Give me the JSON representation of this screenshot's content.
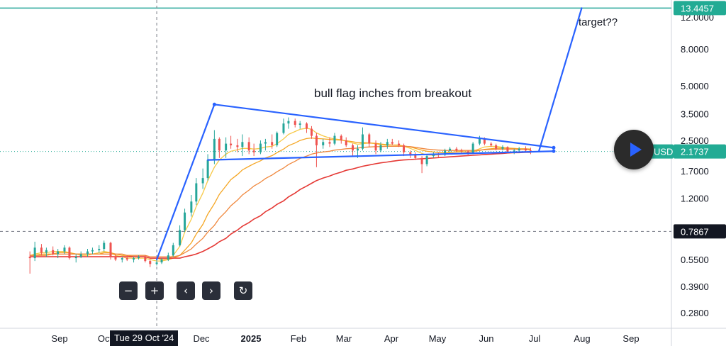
{
  "chart_data": {
    "type": "candlestick",
    "price_scale": "log",
    "y_ticks": [
      "12.0000",
      "8.0000",
      "5.0000",
      "3.5000",
      "2.5000",
      "1.7000",
      "1.2000",
      "0.5500",
      "0.3900",
      "0.2800"
    ],
    "x_ticks": [
      "Sep",
      "Oct",
      "Dec",
      "2025",
      "Feb",
      "Mar",
      "Apr",
      "May",
      "Jun",
      "Jul",
      "Aug",
      "Sep"
    ],
    "bold_tick": "2025",
    "crosshair_date": "Tue 29 Oct '24",
    "crosshair_price": "0.7867",
    "current_price": "2.1737",
    "symbol_suffix": "USD",
    "target_price": "13.4457",
    "annotations": [
      "bull flag inches from breakout",
      "target??"
    ],
    "ohlc": [
      [
        "2024-08-13",
        0.57,
        0.61,
        0.46,
        0.56
      ],
      [
        "2024-08-16",
        0.56,
        0.69,
        0.54,
        0.64
      ],
      [
        "2024-08-20",
        0.64,
        0.67,
        0.58,
        0.6
      ],
      [
        "2024-08-23",
        0.6,
        0.64,
        0.57,
        0.62
      ],
      [
        "2024-08-27",
        0.62,
        0.65,
        0.58,
        0.59
      ],
      [
        "2024-08-30",
        0.59,
        0.63,
        0.56,
        0.61
      ],
      [
        "2024-09-03",
        0.61,
        0.66,
        0.59,
        0.64
      ],
      [
        "2024-09-06",
        0.64,
        0.65,
        0.55,
        0.56
      ],
      [
        "2024-09-10",
        0.56,
        0.59,
        0.53,
        0.57
      ],
      [
        "2024-09-13",
        0.57,
        0.61,
        0.56,
        0.59
      ],
      [
        "2024-09-17",
        0.59,
        0.63,
        0.57,
        0.61
      ],
      [
        "2024-09-20",
        0.61,
        0.64,
        0.59,
        0.62
      ],
      [
        "2024-09-24",
        0.62,
        0.66,
        0.6,
        0.63
      ],
      [
        "2024-09-27",
        0.63,
        0.7,
        0.61,
        0.68
      ],
      [
        "2024-10-01",
        0.68,
        0.69,
        0.55,
        0.57
      ],
      [
        "2024-10-04",
        0.57,
        0.59,
        0.54,
        0.55
      ],
      [
        "2024-10-08",
        0.55,
        0.57,
        0.53,
        0.56
      ],
      [
        "2024-10-11",
        0.56,
        0.58,
        0.54,
        0.55
      ],
      [
        "2024-10-15",
        0.55,
        0.57,
        0.53,
        0.56
      ],
      [
        "2024-10-18",
        0.56,
        0.58,
        0.55,
        0.57
      ],
      [
        "2024-10-22",
        0.57,
        0.58,
        0.53,
        0.54
      ],
      [
        "2024-10-25",
        0.54,
        0.55,
        0.5,
        0.52
      ],
      [
        "2024-10-29",
        0.52,
        0.56,
        0.51,
        0.53
      ],
      [
        "2024-11-01",
        0.53,
        0.56,
        0.52,
        0.55
      ],
      [
        "2024-11-05",
        0.55,
        0.6,
        0.54,
        0.58
      ],
      [
        "2024-11-08",
        0.58,
        0.68,
        0.57,
        0.66
      ],
      [
        "2024-11-12",
        0.66,
        0.85,
        0.65,
        0.8
      ],
      [
        "2024-11-15",
        0.8,
        1.05,
        0.78,
        1.0
      ],
      [
        "2024-11-19",
        1.0,
        1.25,
        0.95,
        1.15
      ],
      [
        "2024-11-22",
        1.15,
        1.55,
        1.1,
        1.45
      ],
      [
        "2024-11-26",
        1.45,
        1.75,
        1.35,
        1.55
      ],
      [
        "2024-11-29",
        1.55,
        2.1,
        1.5,
        1.95
      ],
      [
        "2024-12-03",
        1.95,
        2.85,
        1.85,
        2.55
      ],
      [
        "2024-12-06",
        2.55,
        2.6,
        2.0,
        2.2
      ],
      [
        "2024-12-10",
        2.2,
        2.6,
        2.0,
        2.4
      ],
      [
        "2024-12-13",
        2.4,
        2.65,
        2.25,
        2.35
      ],
      [
        "2024-12-17",
        2.35,
        2.55,
        2.15,
        2.3
      ],
      [
        "2024-12-20",
        2.3,
        2.7,
        2.05,
        2.45
      ],
      [
        "2024-12-24",
        2.45,
        2.6,
        2.1,
        2.2
      ],
      [
        "2024-12-27",
        2.2,
        2.4,
        2.05,
        2.15
      ],
      [
        "2024-12-31",
        2.15,
        2.5,
        2.1,
        2.4
      ],
      [
        "2025-01-03",
        2.4,
        2.55,
        2.2,
        2.45
      ],
      [
        "2025-01-07",
        2.45,
        2.7,
        2.25,
        2.35
      ],
      [
        "2025-01-10",
        2.35,
        2.8,
        2.3,
        2.75
      ],
      [
        "2025-01-14",
        2.75,
        3.3,
        2.7,
        3.1
      ],
      [
        "2025-01-17",
        3.1,
        3.35,
        2.9,
        3.2
      ],
      [
        "2025-01-21",
        3.2,
        3.3,
        2.95,
        3.05
      ],
      [
        "2025-01-24",
        3.05,
        3.2,
        2.9,
        3.1
      ],
      [
        "2025-01-28",
        3.1,
        3.15,
        2.75,
        2.9
      ],
      [
        "2025-01-31",
        2.9,
        3.0,
        2.55,
        2.65
      ],
      [
        "2025-02-03",
        2.65,
        2.75,
        1.78,
        2.35
      ],
      [
        "2025-02-07",
        2.35,
        2.55,
        2.25,
        2.45
      ],
      [
        "2025-02-11",
        2.45,
        2.6,
        2.3,
        2.4
      ],
      [
        "2025-02-14",
        2.4,
        2.75,
        2.35,
        2.65
      ],
      [
        "2025-02-18",
        2.65,
        2.7,
        2.4,
        2.5
      ],
      [
        "2025-02-21",
        2.5,
        2.6,
        2.3,
        2.35
      ],
      [
        "2025-02-25",
        2.35,
        2.4,
        2.05,
        2.2
      ],
      [
        "2025-02-28",
        2.2,
        2.35,
        2.0,
        2.25
      ],
      [
        "2025-03-03",
        2.25,
        2.95,
        2.2,
        2.7
      ],
      [
        "2025-03-07",
        2.7,
        2.75,
        2.3,
        2.4
      ],
      [
        "2025-03-11",
        2.4,
        2.5,
        2.1,
        2.2
      ],
      [
        "2025-03-14",
        2.2,
        2.45,
        2.15,
        2.35
      ],
      [
        "2025-03-18",
        2.35,
        2.55,
        2.25,
        2.45
      ],
      [
        "2025-03-21",
        2.45,
        2.55,
        2.35,
        2.4
      ],
      [
        "2025-03-25",
        2.4,
        2.5,
        2.3,
        2.35
      ],
      [
        "2025-03-28",
        2.35,
        2.4,
        2.05,
        2.15
      ],
      [
        "2025-04-01",
        2.15,
        2.2,
        2.0,
        2.1
      ],
      [
        "2025-04-04",
        2.1,
        2.15,
        1.95,
        2.0
      ],
      [
        "2025-04-08",
        2.0,
        2.05,
        1.65,
        1.85
      ],
      [
        "2025-04-11",
        1.85,
        2.1,
        1.8,
        2.05
      ],
      [
        "2025-04-15",
        2.05,
        2.15,
        2.0,
        2.1
      ],
      [
        "2025-04-18",
        2.1,
        2.15,
        2.02,
        2.08
      ],
      [
        "2025-04-22",
        2.08,
        2.25,
        2.05,
        2.2
      ],
      [
        "2025-04-25",
        2.2,
        2.3,
        2.15,
        2.25
      ],
      [
        "2025-04-29",
        2.25,
        2.3,
        2.15,
        2.2
      ],
      [
        "2025-05-02",
        2.2,
        2.25,
        2.12,
        2.18
      ],
      [
        "2025-05-06",
        2.18,
        2.2,
        2.05,
        2.12
      ],
      [
        "2025-05-09",
        2.12,
        2.45,
        2.1,
        2.4
      ],
      [
        "2025-05-13",
        2.4,
        2.65,
        2.35,
        2.55
      ],
      [
        "2025-05-16",
        2.55,
        2.6,
        2.35,
        2.4
      ],
      [
        "2025-05-20",
        2.4,
        2.45,
        2.3,
        2.35
      ],
      [
        "2025-05-23",
        2.35,
        2.4,
        2.2,
        2.25
      ],
      [
        "2025-05-27",
        2.25,
        2.35,
        2.2,
        2.3
      ],
      [
        "2025-05-30",
        2.3,
        2.32,
        2.12,
        2.15
      ],
      [
        "2025-06-03",
        2.15,
        2.25,
        2.1,
        2.2
      ],
      [
        "2025-06-06",
        2.2,
        2.3,
        2.15,
        2.25
      ],
      [
        "2025-06-10",
        2.25,
        2.32,
        2.15,
        2.2
      ],
      [
        "2025-06-13",
        2.2,
        2.28,
        2.1,
        2.17
      ]
    ],
    "ma_series": [
      {
        "color": "#f7c948",
        "values": [
          0.58,
          0.59,
          0.6,
          0.6,
          0.61,
          0.61,
          0.61,
          0.6,
          0.59,
          0.58,
          0.58,
          0.59,
          0.6,
          0.61,
          0.6,
          0.58,
          0.57,
          0.56,
          0.56,
          0.56,
          0.56,
          0.55,
          0.54,
          0.54,
          0.55,
          0.58,
          0.65,
          0.78,
          0.92,
          1.08,
          1.28,
          1.5,
          1.78,
          1.95,
          2.1,
          2.18,
          2.22,
          2.26,
          2.26,
          2.24,
          2.26,
          2.3,
          2.32,
          2.4,
          2.55,
          2.7,
          2.8,
          2.88,
          2.92,
          2.88,
          2.75,
          2.65,
          2.58,
          2.55,
          2.52,
          2.48,
          2.42,
          2.38,
          2.4,
          2.42,
          2.4,
          2.36,
          2.35,
          2.36,
          2.36,
          2.32,
          2.26,
          2.2,
          2.12,
          2.08,
          2.07,
          2.08,
          2.1,
          2.14,
          2.17,
          2.17,
          2.15,
          2.18,
          2.25,
          2.3,
          2.32,
          2.32,
          2.29,
          2.27,
          2.25,
          2.24,
          2.23,
          2.21
        ]
      },
      {
        "color": "#f5a623",
        "values": [
          0.58,
          0.58,
          0.59,
          0.59,
          0.59,
          0.6,
          0.6,
          0.6,
          0.59,
          0.59,
          0.59,
          0.59,
          0.59,
          0.6,
          0.6,
          0.59,
          0.58,
          0.58,
          0.57,
          0.57,
          0.57,
          0.56,
          0.56,
          0.55,
          0.55,
          0.56,
          0.58,
          0.62,
          0.68,
          0.76,
          0.86,
          0.98,
          1.12,
          1.26,
          1.4,
          1.52,
          1.62,
          1.72,
          1.8,
          1.86,
          1.93,
          2.0,
          2.06,
          2.14,
          2.24,
          2.34,
          2.42,
          2.5,
          2.56,
          2.58,
          2.56,
          2.55,
          2.53,
          2.52,
          2.51,
          2.49,
          2.46,
          2.43,
          2.43,
          2.42,
          2.41,
          2.39,
          2.37,
          2.36,
          2.35,
          2.33,
          2.3,
          2.26,
          2.21,
          2.18,
          2.16,
          2.14,
          2.14,
          2.15,
          2.16,
          2.17,
          2.16,
          2.17,
          2.2,
          2.23,
          2.25,
          2.27,
          2.27,
          2.27,
          2.26,
          2.25,
          2.25,
          2.24
        ]
      },
      {
        "color": "#f0883e",
        "values": [
          0.58,
          0.58,
          0.58,
          0.58,
          0.59,
          0.59,
          0.59,
          0.59,
          0.59,
          0.59,
          0.59,
          0.59,
          0.59,
          0.59,
          0.59,
          0.59,
          0.59,
          0.58,
          0.58,
          0.58,
          0.58,
          0.57,
          0.57,
          0.57,
          0.57,
          0.57,
          0.58,
          0.6,
          0.63,
          0.67,
          0.72,
          0.78,
          0.85,
          0.93,
          1.01,
          1.09,
          1.17,
          1.25,
          1.33,
          1.4,
          1.47,
          1.54,
          1.61,
          1.68,
          1.76,
          1.84,
          1.92,
          1.99,
          2.05,
          2.1,
          2.13,
          2.16,
          2.18,
          2.21,
          2.23,
          2.25,
          2.26,
          2.27,
          2.29,
          2.3,
          2.31,
          2.31,
          2.32,
          2.32,
          2.32,
          2.32,
          2.31,
          2.29,
          2.26,
          2.24,
          2.22,
          2.21,
          2.2,
          2.2,
          2.2,
          2.2,
          2.2,
          2.2,
          2.21,
          2.22,
          2.23,
          2.24,
          2.24,
          2.24,
          2.24,
          2.23,
          2.23,
          2.23
        ]
      },
      {
        "color": "#e53935",
        "values": [
          0.57,
          0.57,
          0.57,
          0.57,
          0.57,
          0.57,
          0.57,
          0.57,
          0.57,
          0.57,
          0.57,
          0.57,
          0.57,
          0.57,
          0.57,
          0.57,
          0.57,
          0.57,
          0.57,
          0.57,
          0.57,
          0.56,
          0.56,
          0.56,
          0.56,
          0.56,
          0.56,
          0.57,
          0.58,
          0.59,
          0.61,
          0.63,
          0.66,
          0.69,
          0.72,
          0.76,
          0.8,
          0.84,
          0.88,
          0.92,
          0.96,
          1.01,
          1.06,
          1.11,
          1.16,
          1.22,
          1.28,
          1.34,
          1.4,
          1.45,
          1.5,
          1.55,
          1.59,
          1.63,
          1.67,
          1.71,
          1.74,
          1.77,
          1.8,
          1.83,
          1.86,
          1.88,
          1.9,
          1.92,
          1.94,
          1.95,
          1.96,
          1.97,
          1.98,
          1.99,
          2.0,
          2.01,
          2.02,
          2.03,
          2.04,
          2.05,
          2.06,
          2.07,
          2.08,
          2.09,
          2.1,
          2.11,
          2.12,
          2.13,
          2.14,
          2.14,
          2.15,
          2.15
        ]
      }
    ],
    "trendlines": [
      {
        "name": "flag-upper",
        "from": [
          "2024-12-03",
          3.95
        ],
        "to": [
          "2025-06-27",
          2.28
        ]
      },
      {
        "name": "flag-lower",
        "from": [
          "2024-11-29",
          1.95
        ],
        "to": [
          "2025-06-27",
          2.18
        ]
      },
      {
        "name": "pole",
        "from": [
          "2024-10-29",
          0.55
        ],
        "to": [
          "2024-12-03",
          3.95
        ]
      },
      {
        "name": "breakout",
        "from": [
          "2025-06-18",
          2.18
        ],
        "to": [
          "2025-07-14",
          13.4457
        ]
      }
    ],
    "colors": {
      "up": "#26a69a",
      "down": "#ef5350",
      "trendline": "#2962ff",
      "target_line": "#26a69a",
      "current_badge": "#22ab94",
      "dotted": "#22ab94"
    }
  },
  "toolbar": {
    "zoom_out": "−",
    "zoom_in": "+",
    "scroll_left": "‹",
    "scroll_right": "›",
    "reset": "↻"
  }
}
